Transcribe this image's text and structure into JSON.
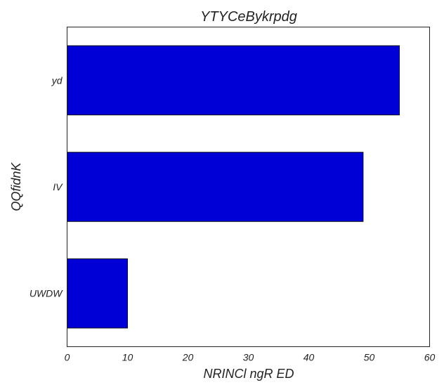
{
  "chart_data": {
    "type": "bar",
    "orientation": "horizontal",
    "title": "YTYCeBykrpdg",
    "xlabel": "NRINCl  ngR ED",
    "ylabel": "QQfidnK",
    "categories": [
      "yd",
      "IV",
      "UWDW"
    ],
    "values": [
      55,
      49,
      10
    ],
    "xlim": [
      0,
      60
    ],
    "xticks": [
      "0",
      "10",
      "20",
      "30",
      "40",
      "50",
      "60"
    ],
    "grid": false,
    "legend": "none",
    "bar_color": "#0000d6",
    "bar_edge_color": "#111111"
  }
}
